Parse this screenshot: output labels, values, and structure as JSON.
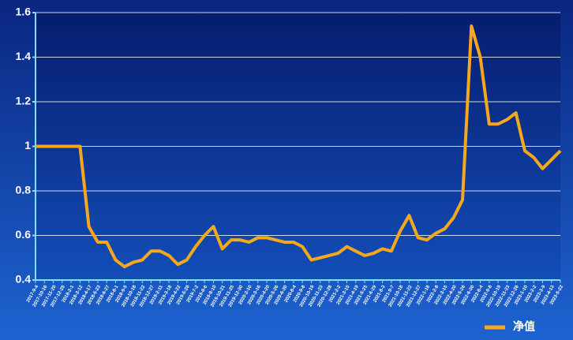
{
  "chart_data": {
    "type": "line",
    "categories": [
      "2017-9-4",
      "2017-10-16",
      "2017-11-20",
      "2017-12-25",
      "2018-2-1",
      "2018-3-12",
      "2018-4-17",
      "2018-5-23",
      "2018-6-27",
      "2018-8-1",
      "2018-9-5",
      "2018-10-18",
      "2018-11-22",
      "2018-12-27",
      "2019-2-11",
      "2019-3-18",
      "2019-4-22",
      "2019-5-28",
      "2019-7-2",
      "2019-8-6",
      "2019-9-10",
      "2019-10-21",
      "2019-11-25",
      "2019-12-30",
      "2020-2-10",
      "2020-3-16",
      "2020-4-20",
      "2020-5-26",
      "2020-6-30",
      "2020-8-4",
      "2020-9-8",
      "2020-10-19",
      "2020-11-23",
      "2020-12-28",
      "2021-2-2",
      "2021-3-15",
      "2021-4-19",
      "2021-5-25",
      "2021-6-29",
      "2021-8-3",
      "2021-9-7",
      "2021-10-18",
      "2021-11-22",
      "2021-12-27",
      "2022-1-18",
      "2022-2-8",
      "2022-3-15",
      "2022-4-20",
      "2022-5-26",
      "2022-6-30",
      "2022-8-4",
      "2022-9-8",
      "2022-10-19",
      "2022-11-23",
      "2022-12-28",
      "2023-1-10",
      "2023-2-2",
      "2023-3-9",
      "2023-4-13",
      "2023-5-22"
    ],
    "series": [
      {
        "name": "净值",
        "color": "#f5a81c",
        "values": [
          1.0,
          1.0,
          1.0,
          1.0,
          1.0,
          1.0,
          0.64,
          0.57,
          0.57,
          0.49,
          0.46,
          0.48,
          0.49,
          0.53,
          0.53,
          0.51,
          0.47,
          0.49,
          0.55,
          0.6,
          0.64,
          0.54,
          0.58,
          0.58,
          0.57,
          0.59,
          0.59,
          0.58,
          0.57,
          0.57,
          0.55,
          0.49,
          0.5,
          0.51,
          0.52,
          0.55,
          0.53,
          0.51,
          0.52,
          0.54,
          0.53,
          0.62,
          0.69,
          0.59,
          0.58,
          0.61,
          0.63,
          0.68,
          0.76,
          1.54,
          1.4,
          1.1,
          1.1,
          1.12,
          1.15,
          0.98,
          0.95,
          0.9,
          0.94,
          0.98
        ]
      }
    ],
    "ylim": [
      0.4,
      1.6
    ],
    "yticks": [
      0.4,
      0.6,
      0.8,
      1,
      1.2,
      1.4,
      1.6
    ],
    "grid": true,
    "legend": "bottom-right"
  }
}
